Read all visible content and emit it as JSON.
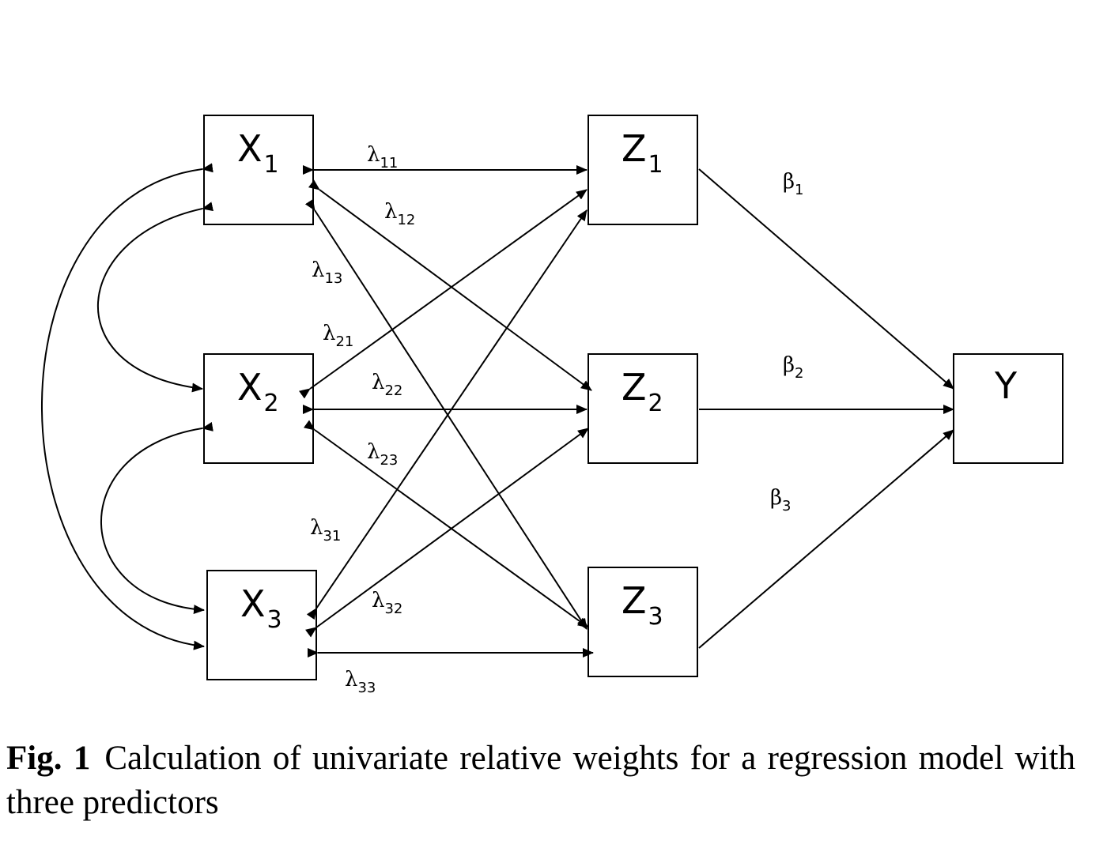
{
  "nodes": {
    "x1": {
      "label": "X",
      "sub": "1"
    },
    "x2": {
      "label": "X",
      "sub": "2"
    },
    "x3": {
      "label": "X",
      "sub": "3"
    },
    "z1": {
      "label": "Z",
      "sub": "1"
    },
    "z2": {
      "label": "Z",
      "sub": "2"
    },
    "z3": {
      "label": "Z",
      "sub": "3"
    },
    "y": {
      "label": "Y",
      "sub": ""
    }
  },
  "coefficients": {
    "l11": {
      "sym": "λ",
      "sub": "11"
    },
    "l12": {
      "sym": "λ",
      "sub": "12"
    },
    "l13": {
      "sym": "λ",
      "sub": "13"
    },
    "l21": {
      "sym": "λ",
      "sub": "21"
    },
    "l22": {
      "sym": "λ",
      "sub": "22"
    },
    "l23": {
      "sym": "λ",
      "sub": "23"
    },
    "l31": {
      "sym": "λ",
      "sub": "31"
    },
    "l32": {
      "sym": "λ",
      "sub": "32"
    },
    "l33": {
      "sym": "λ",
      "sub": "33"
    },
    "b1": {
      "sym": "β",
      "sub": "1"
    },
    "b2": {
      "sym": "β",
      "sub": "2"
    },
    "b3": {
      "sym": "β",
      "sub": "3"
    }
  },
  "caption": {
    "label": "Fig. 1",
    "text": "Calculation of univariate relative weights for a regression model with three predictors"
  }
}
